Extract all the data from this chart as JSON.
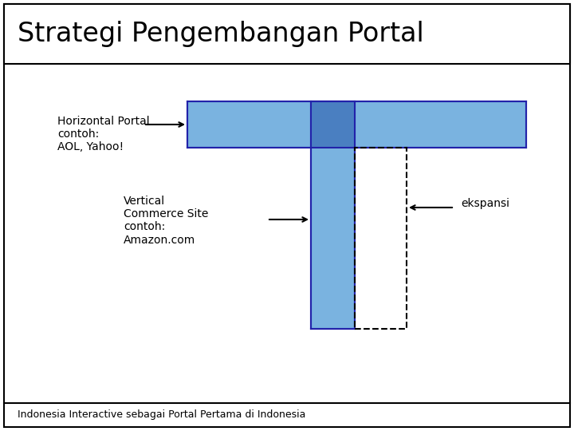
{
  "title": "Strategi Pengembangan Portal",
  "footer": "Indonesia Interactive sebagai Portal Pertama di Indonesia",
  "light_blue": "#7ab3e0",
  "dark_blue": "#4a7fc1",
  "box_edge": "#2222aa",
  "bg_color": "#ffffff",
  "horiz_label": "Horizontal Portal\ncontoh:\nAOL, Yahoo!",
  "vert_label": "Vertical\nCommerce Site\ncontoh:\nAmazon.com",
  "ekspansi_label": "ekspansi",
  "title_fontsize": 24,
  "label_fontsize": 10,
  "footer_fontsize": 9
}
